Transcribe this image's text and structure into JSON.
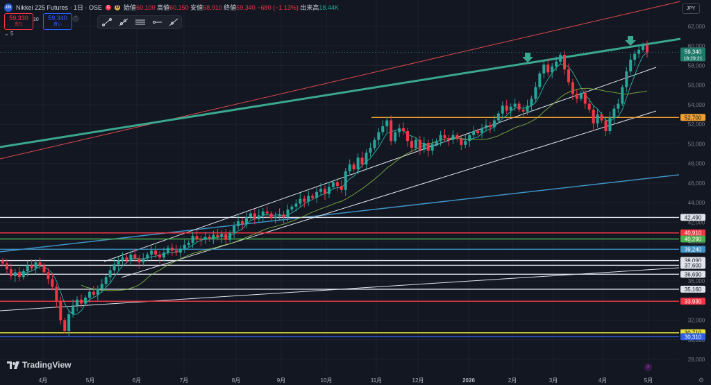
{
  "header": {
    "title": "Nikkei 225 Futures · 1日 · OSE",
    "symbol_badge": "225",
    "ohlc": [
      {
        "k": "始値",
        "v": "60,100"
      },
      {
        "k": "高値",
        "v": "60,150"
      },
      {
        "k": "安値",
        "v": "58,910"
      },
      {
        "k": "終値",
        "v": "59,340"
      },
      {
        "k": "",
        "v": "−680 (−1.13%)"
      },
      {
        "k": "出来高",
        "v": "18.44K"
      }
    ],
    "status_dots": [
      {
        "color": "#f23645",
        "glyph": "C"
      },
      {
        "color": "#e8b341",
        "glyph": "D"
      }
    ]
  },
  "trade": {
    "sell_price": "59,330",
    "sell_label": "売り",
    "spread": "10",
    "buy_price": "59,340",
    "buy_label": "買い"
  },
  "indicator_label": "5",
  "currency": "JPY",
  "brand": "TradingView",
  "colors": {
    "bg": "#131722",
    "grid": "#1e222d",
    "up": "#26a69a",
    "down": "#f23645",
    "white": "#e0e3eb",
    "green_line": "#3aa890",
    "red_line": "#e04a4a",
    "cyan_line": "#3f93c4",
    "orange": "#f0a030",
    "yellow": "#e8e03a",
    "blue": "#3060e0"
  },
  "chart_data": {
    "type": "candlestick",
    "x_ticks": [
      "4月",
      "5月",
      "6月",
      "7月",
      "8月",
      "9月",
      "10月",
      "11月",
      "12月",
      "2026",
      "2月",
      "3月",
      "4月",
      "5月"
    ],
    "y_ticks": [
      28000,
      30000,
      32000,
      34000,
      36000,
      38000,
      40000,
      42000,
      44000,
      46000,
      48000,
      50000,
      52000,
      54000,
      56000,
      58000,
      60000,
      62000
    ],
    "y_tick_labels": [
      "28,000",
      "30,000",
      "32,000",
      "34,000",
      "36,000",
      "38,000",
      "40,000",
      "42,000",
      "44,000",
      "46,000",
      "48,000",
      "50,000",
      "52,000",
      "54,000",
      "56,000",
      "58,000",
      "60,000",
      "62,000"
    ],
    "ylim": [
      27000,
      63500
    ],
    "last_price": {
      "value": 59340,
      "label": "59,340",
      "countdown": "18:29:21"
    },
    "levels": [
      {
        "value": 52700,
        "label": "52,700",
        "color": "#f0a030"
      },
      {
        "value": 42490,
        "label": "42,490",
        "color": "#e0e3eb"
      },
      {
        "value": 40910,
        "label": "40,910",
        "color": "#f23645"
      },
      {
        "value": 40290,
        "label": "40,290",
        "color": "#4caf50"
      },
      {
        "value": 39240,
        "label": "39,240",
        "color": "#3f93c4"
      },
      {
        "value": 38090,
        "label": "38,090",
        "color": "#e0e3eb"
      },
      {
        "value": 37600,
        "label": "37,600",
        "color": "#e0e3eb"
      },
      {
        "value": 36690,
        "label": "36,690",
        "color": "#e0e3eb"
      },
      {
        "value": 35160,
        "label": "35,160",
        "color": "#e0e3eb"
      },
      {
        "value": 33930,
        "label": "33,930",
        "color": "#f23645"
      },
      {
        "value": 30710,
        "label": "30,710",
        "color": "#e8e03a"
      },
      {
        "value": 30310,
        "label": "30,310",
        "color": "#3060e0"
      }
    ],
    "closes": [
      37800,
      37200,
      36500,
      36900,
      36400,
      37000,
      37600,
      37300,
      37900,
      37600,
      36900,
      36200,
      35400,
      33900,
      32000,
      30900,
      32600,
      33500,
      34100,
      33700,
      34300,
      34900,
      34600,
      35200,
      35700,
      36400,
      37100,
      37700,
      38100,
      38400,
      38100,
      38700,
      38300,
      37900,
      38300,
      38700,
      39100,
      38700,
      38400,
      38900,
      39400,
      39100,
      38900,
      39300,
      39700,
      39900,
      40600,
      40300,
      40200,
      40500,
      40300,
      40700,
      40500,
      40800,
      40200,
      40900,
      41600,
      42100,
      41800,
      42500,
      42900,
      42300,
      42700,
      43100,
      42900,
      42400,
      42600,
      42800,
      42500,
      43300,
      43600,
      43900,
      44400,
      44100,
      44700,
      44500,
      45100,
      45400,
      44900,
      45600,
      46100,
      45700,
      45300,
      47200,
      47900,
      47400,
      48600,
      47900,
      49100,
      49600,
      50400,
      51200,
      51800,
      52400,
      50300,
      51200,
      51600,
      51300,
      50300,
      49600,
      50400,
      49400,
      50100,
      49300,
      50000,
      50300,
      50900,
      50600,
      50400,
      50900,
      50500,
      49900,
      50300,
      50900,
      51300,
      51100,
      51600,
      51900,
      51700,
      52400,
      53100,
      53900,
      53400,
      53800,
      54100,
      53500,
      53300,
      53900,
      54600,
      55800,
      57200,
      58100,
      57300,
      57900,
      58400,
      59100,
      57600,
      56300,
      55100,
      54600,
      55200,
      54100,
      53500,
      52100,
      53000,
      52400,
      51300,
      52700,
      53600,
      54100,
      55800,
      57400,
      58600,
      59200,
      59600,
      60100,
      59340
    ]
  }
}
